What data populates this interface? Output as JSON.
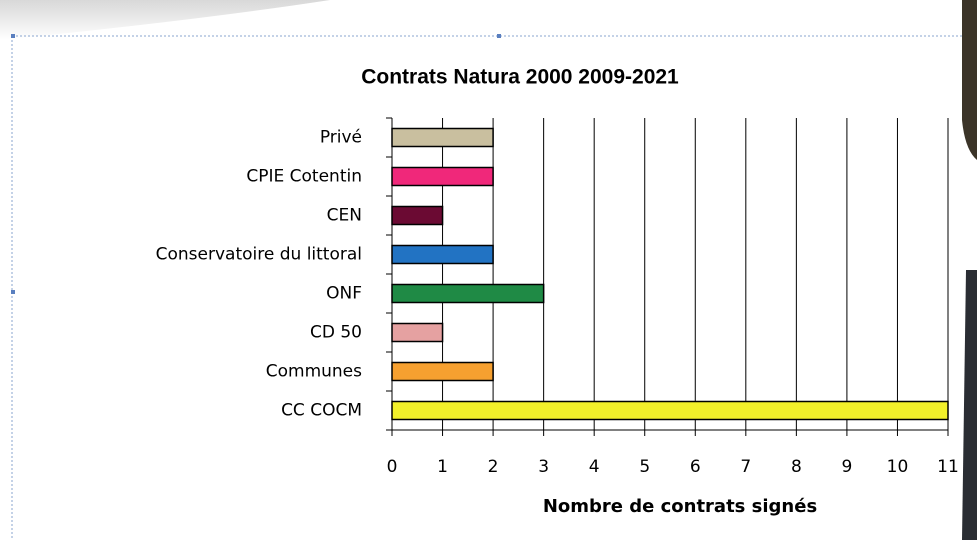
{
  "chart_data": {
    "type": "hbar",
    "title": "Contrats Natura 2000 2009-2021",
    "x_label": "Nombre de contrats signés",
    "categories": [
      "Privé",
      "CPIE Cotentin",
      "CEN",
      "Conservatoire du littoral",
      "ONF",
      "CD 50",
      "Communes",
      "CC COCM"
    ],
    "values": [
      2,
      2,
      1,
      2,
      3,
      1,
      2,
      11
    ],
    "colors": [
      "#c9bf9f",
      "#f0287a",
      "#6b0a33",
      "#2273c3",
      "#1f8a45",
      "#e5a1a1",
      "#f6a030",
      "#f2f02a"
    ],
    "xlim": [
      0,
      11
    ],
    "xticks": [
      0,
      1,
      2,
      3,
      4,
      5,
      6,
      7,
      8,
      9,
      10,
      11
    ],
    "grid": true
  }
}
